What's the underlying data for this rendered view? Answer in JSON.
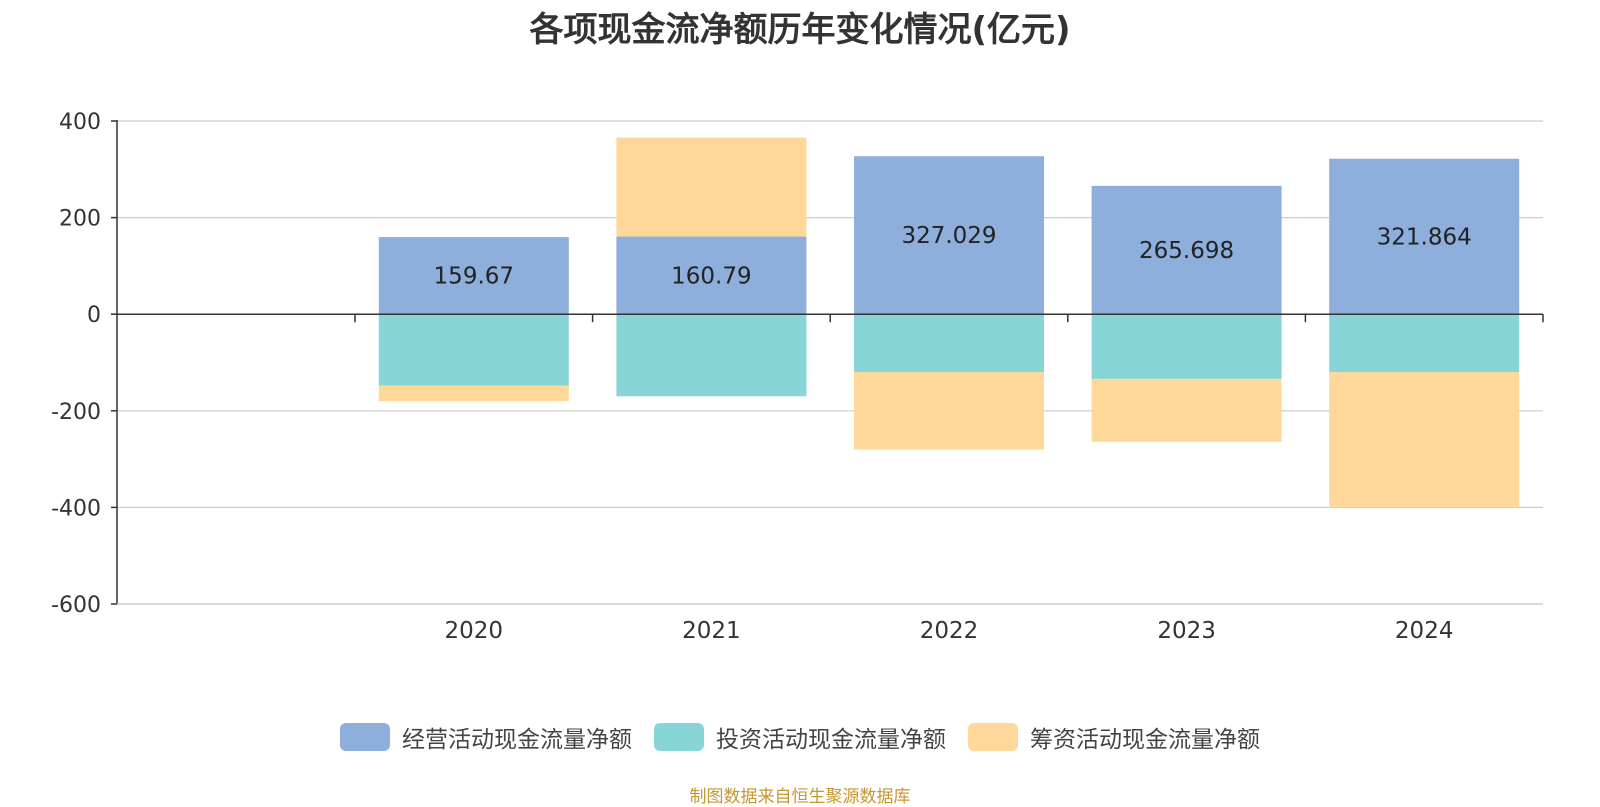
{
  "chart_data": {
    "type": "bar",
    "stacked": true,
    "title": "各项现金流净额历年变化情况(亿元)",
    "categories": [
      "2020",
      "2021",
      "2022",
      "2023",
      "2024"
    ],
    "ylim": [
      -600,
      400
    ],
    "yticks": [
      400,
      200,
      0,
      -200,
      -400,
      -600
    ],
    "ytick_labels": [
      "400",
      "200",
      "0",
      "-200",
      "-400",
      "-600"
    ],
    "grid": true,
    "legend_position": "bottom",
    "series": [
      {
        "name": "经营活动现金流量净额",
        "color": "#8eaedb",
        "values": [
          159.67,
          160.79,
          327.029,
          265.698,
          321.864
        ],
        "data_labels": [
          "159.67",
          "160.79",
          "327.029",
          "265.698",
          "321.864"
        ]
      },
      {
        "name": "投资活动现金流量净额",
        "color": "#88d5d8",
        "values": [
          -148,
          -170,
          -120,
          -134,
          -120
        ]
      },
      {
        "name": "筹资活动现金流量净额",
        "color": "#ffd899",
        "values": [
          -32,
          205,
          -160,
          -130,
          -280
        ]
      }
    ]
  },
  "footer": {
    "source": "制图数据来自恒生聚源数据库"
  }
}
